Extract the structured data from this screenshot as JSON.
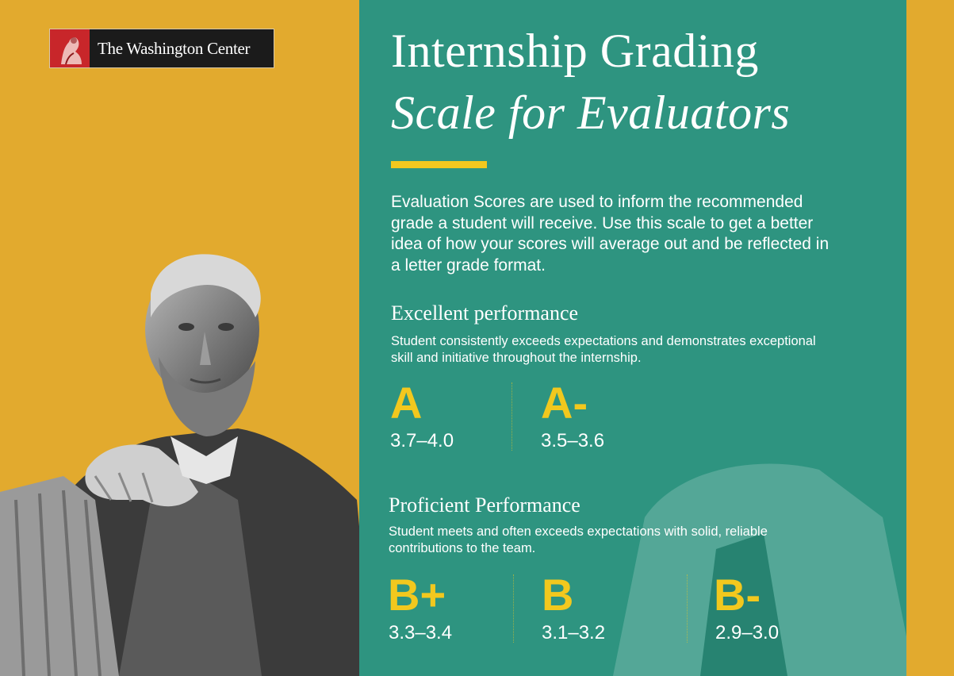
{
  "logo": {
    "text": "The Washington Center"
  },
  "title": {
    "line1": "Internship Grading",
    "line2": "Scale for Evaluators"
  },
  "intro": "Evaluation Scores are used to inform the recommended grade a student will receive. Use this scale to get a better idea of how your scores will average out and be reflected in a letter grade format.",
  "sections": [
    {
      "title": "Excellent performance",
      "description": "Student consistently exceeds expectations and demonstrates exceptional skill and initiative throughout the internship.",
      "grades": [
        {
          "letter": "A",
          "range": "3.7–4.0"
        },
        {
          "letter": "A-",
          "range": "3.5–3.6"
        }
      ]
    },
    {
      "title": "Proficient Performance",
      "description": "Student meets and often exceeds expectations with solid, reliable contributions to the team.",
      "grades": [
        {
          "letter": "B+",
          "range": "3.3–3.4"
        },
        {
          "letter": "B",
          "range": "3.1–3.2"
        },
        {
          "letter": "B-",
          "range": "2.9–3.0"
        }
      ]
    }
  ],
  "colors": {
    "background": "#E2AA2E",
    "panel": "#2E9480",
    "accent": "#F2C81E",
    "logo_red": "#C8262A"
  },
  "icons": {
    "logo_mark": "statue-emblem-icon",
    "illustration": "lincoln-statue-illustration"
  }
}
